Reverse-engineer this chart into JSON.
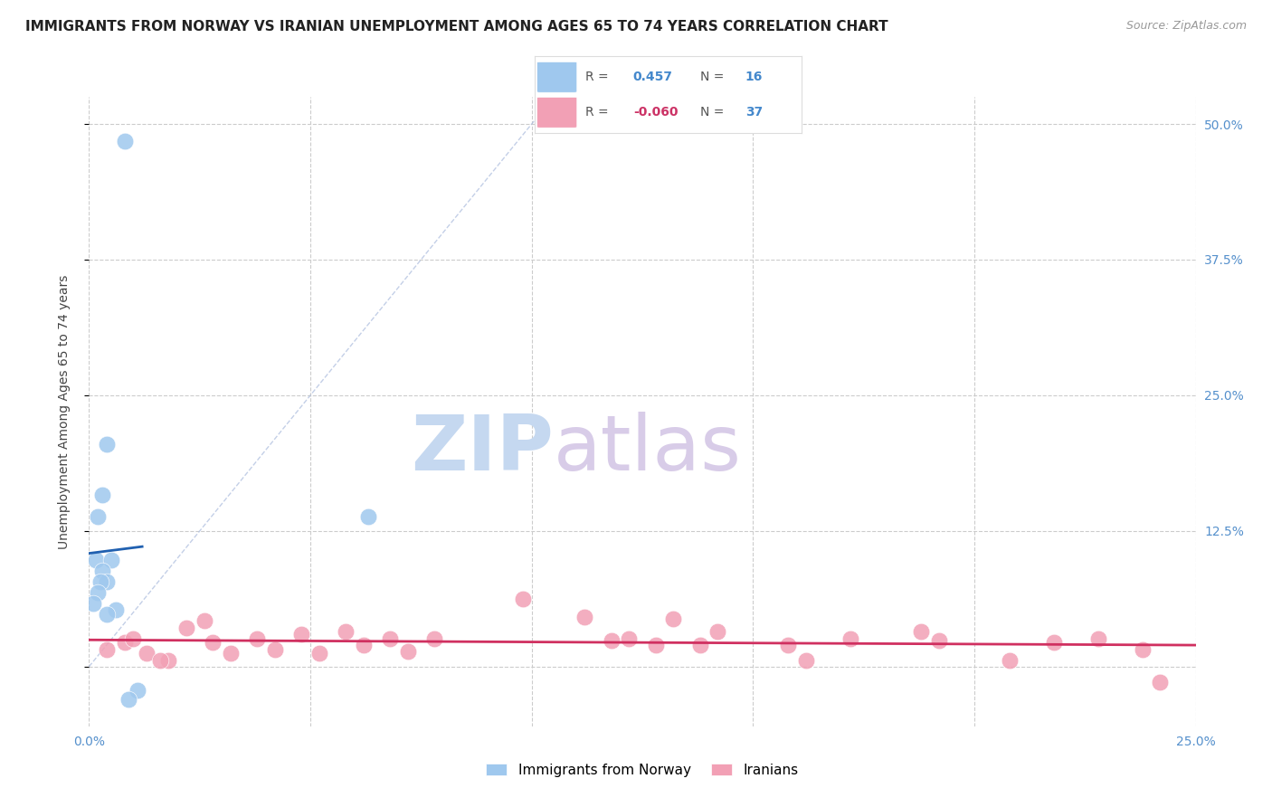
{
  "title": "IMMIGRANTS FROM NORWAY VS IRANIAN UNEMPLOYMENT AMONG AGES 65 TO 74 YEARS CORRELATION CHART",
  "source": "Source: ZipAtlas.com",
  "ylabel": "Unemployment Among Ages 65 to 74 years",
  "xlim": [
    0.0,
    0.25
  ],
  "ylim": [
    -0.055,
    0.525
  ],
  "norway_R": 0.457,
  "norway_N": 16,
  "iran_R": -0.06,
  "iran_N": 37,
  "norway_color": "#9FC8EE",
  "iran_color": "#F2A0B5",
  "norway_line_color": "#2060B0",
  "iran_line_color": "#D03060",
  "norway_scatter_x": [
    0.008,
    0.004,
    0.003,
    0.002,
    0.0015,
    0.005,
    0.003,
    0.004,
    0.0025,
    0.002,
    0.001,
    0.006,
    0.004,
    0.063,
    0.011,
    0.009
  ],
  "norway_scatter_y": [
    0.484,
    0.205,
    0.158,
    0.138,
    0.098,
    0.098,
    0.088,
    0.078,
    0.078,
    0.068,
    0.058,
    0.052,
    0.048,
    0.138,
    -0.022,
    -0.03
  ],
  "iran_scatter_x": [
    0.004,
    0.008,
    0.013,
    0.018,
    0.01,
    0.016,
    0.022,
    0.028,
    0.032,
    0.026,
    0.038,
    0.042,
    0.048,
    0.052,
    0.058,
    0.062,
    0.068,
    0.072,
    0.078,
    0.098,
    0.112,
    0.118,
    0.122,
    0.128,
    0.132,
    0.138,
    0.142,
    0.158,
    0.162,
    0.172,
    0.188,
    0.192,
    0.208,
    0.218,
    0.228,
    0.238,
    0.242
  ],
  "iran_scatter_y": [
    0.016,
    0.022,
    0.012,
    0.006,
    0.026,
    0.006,
    0.036,
    0.022,
    0.012,
    0.042,
    0.026,
    0.016,
    0.03,
    0.012,
    0.032,
    0.02,
    0.026,
    0.014,
    0.026,
    0.062,
    0.046,
    0.024,
    0.026,
    0.02,
    0.044,
    0.02,
    0.032,
    0.02,
    0.006,
    0.026,
    0.032,
    0.024,
    0.006,
    0.022,
    0.026,
    0.016,
    -0.014
  ],
  "background_color": "#ffffff",
  "grid_color": "#cccccc",
  "tick_color": "#5590CC",
  "right_tick_color": "#5590CC"
}
